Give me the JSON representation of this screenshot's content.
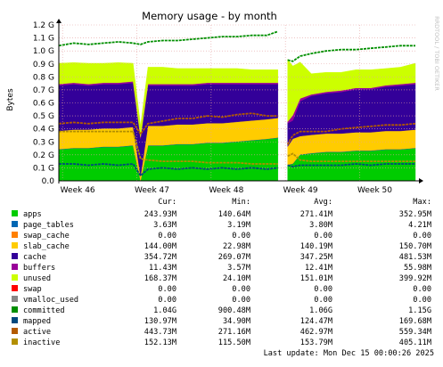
{
  "chart_data": {
    "type": "area",
    "title": "Memory usage - by month",
    "ylabel": "Bytes",
    "side_label": "RRDTOOL / TOBI OETIKER",
    "y_ticks": [
      {
        "label": "0.0",
        "value": 0.0
      },
      {
        "label": "0.1 G",
        "value": 0.1
      },
      {
        "label": "0.2 G",
        "value": 0.2
      },
      {
        "label": "0.3 G",
        "value": 0.3
      },
      {
        "label": "0.4 G",
        "value": 0.4
      },
      {
        "label": "0.5 G",
        "value": 0.5
      },
      {
        "label": "0.6 G",
        "value": 0.6
      },
      {
        "label": "0.7 G",
        "value": 0.7
      },
      {
        "label": "0.8 G",
        "value": 0.8
      },
      {
        "label": "0.9 G",
        "value": 0.9
      },
      {
        "label": "1.0 G",
        "value": 1.0
      },
      {
        "label": "1.1 G",
        "value": 1.1
      },
      {
        "label": "1.2 G",
        "value": 1.2
      }
    ],
    "ylim": [
      0,
      1.2
    ],
    "x_ticks": [
      {
        "label": "Week 46",
        "value": 0.5
      },
      {
        "label": "Week 47",
        "value": 10.5
      },
      {
        "label": "Week 48",
        "value": 20.5
      },
      {
        "label": "Week 49",
        "value": 30.5
      },
      {
        "label": "Week 50",
        "value": 40.5
      }
    ],
    "xlim": [
      0,
      48
    ],
    "gap": [
      29.8,
      30.6
    ],
    "x": [
      0,
      2,
      4,
      6,
      8,
      10,
      11,
      12,
      14,
      16,
      18,
      20,
      22,
      24,
      26,
      28,
      29.5,
      30.8,
      31.5,
      32.5,
      34,
      36,
      38,
      40,
      42,
      44,
      46,
      48
    ],
    "series": [
      {
        "name": "apps",
        "values": [
          0.24,
          0.25,
          0.25,
          0.26,
          0.26,
          0.27,
          0.0,
          0.27,
          0.27,
          0.28,
          0.28,
          0.29,
          0.29,
          0.3,
          0.31,
          0.32,
          0.33,
          0.12,
          0.13,
          0.2,
          0.21,
          0.22,
          0.22,
          0.23,
          0.23,
          0.24,
          0.24,
          0.25
        ]
      },
      {
        "name": "page_tables",
        "values": [
          0.004,
          0.004,
          0.004,
          0.004,
          0.004,
          0.004,
          0.004,
          0.004,
          0.004,
          0.004,
          0.004,
          0.004,
          0.004,
          0.004,
          0.004,
          0.004,
          0.004,
          0.004,
          0.004,
          0.004,
          0.004,
          0.004,
          0.004,
          0.004,
          0.004,
          0.004,
          0.004,
          0.004
        ]
      },
      {
        "name": "swap_cache",
        "values": [
          0,
          0,
          0,
          0,
          0,
          0,
          0,
          0,
          0,
          0,
          0,
          0,
          0,
          0,
          0,
          0,
          0,
          0,
          0,
          0,
          0,
          0,
          0,
          0,
          0,
          0,
          0,
          0
        ]
      },
      {
        "name": "slab_cache",
        "values": [
          0.14,
          0.14,
          0.14,
          0.14,
          0.14,
          0.14,
          0.03,
          0.15,
          0.15,
          0.15,
          0.15,
          0.15,
          0.15,
          0.15,
          0.15,
          0.15,
          0.15,
          0.14,
          0.19,
          0.14,
          0.14,
          0.14,
          0.14,
          0.14,
          0.14,
          0.14,
          0.14,
          0.14
        ]
      },
      {
        "name": "cache",
        "values": [
          0.35,
          0.35,
          0.34,
          0.34,
          0.34,
          0.34,
          0.29,
          0.31,
          0.31,
          0.3,
          0.3,
          0.3,
          0.3,
          0.29,
          0.28,
          0.27,
          0.26,
          0.18,
          0.14,
          0.27,
          0.3,
          0.31,
          0.32,
          0.33,
          0.33,
          0.34,
          0.35,
          0.35
        ]
      },
      {
        "name": "buffers",
        "values": [
          0.011,
          0.011,
          0.011,
          0.011,
          0.011,
          0.011,
          0.011,
          0.011,
          0.011,
          0.011,
          0.011,
          0.011,
          0.011,
          0.011,
          0.011,
          0.011,
          0.011,
          0.011,
          0.04,
          0.02,
          0.011,
          0.011,
          0.011,
          0.011,
          0.011,
          0.011,
          0.011,
          0.011
        ]
      },
      {
        "name": "unused",
        "values": [
          0.16,
          0.155,
          0.16,
          0.15,
          0.155,
          0.14,
          0.09,
          0.13,
          0.13,
          0.12,
          0.12,
          0.11,
          0.11,
          0.11,
          0.1,
          0.1,
          0.1,
          0.48,
          0.38,
          0.28,
          0.16,
          0.15,
          0.14,
          0.14,
          0.14,
          0.13,
          0.13,
          0.15
        ]
      }
    ],
    "lines": [
      {
        "name": "committed",
        "values": [
          1.04,
          1.06,
          1.05,
          1.06,
          1.07,
          1.06,
          1.05,
          1.07,
          1.08,
          1.08,
          1.09,
          1.1,
          1.11,
          1.11,
          1.12,
          1.12,
          1.15,
          0.93,
          0.92,
          0.96,
          0.98,
          1.0,
          1.01,
          1.01,
          1.02,
          1.03,
          1.04,
          1.04
        ]
      },
      {
        "name": "mapped",
        "values": [
          0.13,
          0.13,
          0.12,
          0.13,
          0.12,
          0.13,
          0.04,
          0.09,
          0.1,
          0.09,
          0.1,
          0.09,
          0.1,
          0.09,
          0.1,
          0.09,
          0.1,
          0.12,
          0.11,
          0.12,
          0.12,
          0.12,
          0.12,
          0.13,
          0.12,
          0.13,
          0.13,
          0.13
        ]
      },
      {
        "name": "active",
        "values": [
          0.44,
          0.45,
          0.44,
          0.45,
          0.45,
          0.45,
          0.36,
          0.44,
          0.46,
          0.48,
          0.48,
          0.5,
          0.49,
          0.51,
          0.52,
          0.5,
          0.5,
          0.28,
          0.35,
          0.38,
          0.38,
          0.38,
          0.4,
          0.41,
          0.42,
          0.43,
          0.43,
          0.44
        ]
      },
      {
        "name": "inactive",
        "values": [
          0.38,
          0.38,
          0.38,
          0.38,
          0.38,
          0.38,
          0.17,
          0.16,
          0.15,
          0.15,
          0.15,
          0.14,
          0.14,
          0.14,
          0.13,
          0.13,
          0.13,
          0.19,
          0.21,
          0.16,
          0.15,
          0.15,
          0.15,
          0.15,
          0.15,
          0.15,
          0.15,
          0.15
        ]
      }
    ]
  },
  "colors": {
    "apps": "#00cc00",
    "page_tables": "#0066b3",
    "swap_cache": "#ff8000",
    "slab_cache": "#ffcc00",
    "cache": "#330099",
    "buffers": "#990099",
    "unused": "#ccff00",
    "swap": "#ff0000",
    "vmalloc_used": "#888888",
    "committed": "#008f00",
    "mapped": "#00487d",
    "active": "#b35a00",
    "inactive": "#b38f00"
  },
  "legend": {
    "headers": [
      "Cur:",
      "Min:",
      "Avg:",
      "Max:"
    ],
    "rows": [
      {
        "name": "apps",
        "color": "#00cc00",
        "cur": "243.93M",
        "min": "140.64M",
        "avg": "271.41M",
        "max": "352.95M"
      },
      {
        "name": "page_tables",
        "color": "#0066b3",
        "cur": "3.63M",
        "min": "3.19M",
        "avg": "3.80M",
        "max": "4.21M"
      },
      {
        "name": "swap_cache",
        "color": "#ff8000",
        "cur": "0.00",
        "min": "0.00",
        "avg": "0.00",
        "max": "0.00"
      },
      {
        "name": "slab_cache",
        "color": "#ffcc00",
        "cur": "144.00M",
        "min": "22.98M",
        "avg": "140.19M",
        "max": "150.70M"
      },
      {
        "name": "cache",
        "color": "#330099",
        "cur": "354.72M",
        "min": "269.07M",
        "avg": "347.25M",
        "max": "481.53M"
      },
      {
        "name": "buffers",
        "color": "#990099",
        "cur": "11.43M",
        "min": "3.57M",
        "avg": "12.41M",
        "max": "55.98M"
      },
      {
        "name": "unused",
        "color": "#ccff00",
        "cur": "168.37M",
        "min": "24.10M",
        "avg": "151.01M",
        "max": "399.92M"
      },
      {
        "name": "swap",
        "color": "#ff0000",
        "cur": "0.00",
        "min": "0.00",
        "avg": "0.00",
        "max": "0.00"
      },
      {
        "name": "vmalloc_used",
        "color": "#888888",
        "cur": "0.00",
        "min": "0.00",
        "avg": "0.00",
        "max": "0.00"
      },
      {
        "name": "committed",
        "color": "#008f00",
        "cur": "1.04G",
        "min": "900.48M",
        "avg": "1.06G",
        "max": "1.15G"
      },
      {
        "name": "mapped",
        "color": "#00487d",
        "cur": "130.97M",
        "min": "34.90M",
        "avg": "124.47M",
        "max": "169.68M"
      },
      {
        "name": "active",
        "color": "#b35a00",
        "cur": "443.73M",
        "min": "271.16M",
        "avg": "462.97M",
        "max": "559.34M"
      },
      {
        "name": "inactive",
        "color": "#b38f00",
        "cur": "152.13M",
        "min": "115.50M",
        "avg": "153.79M",
        "max": "405.11M"
      }
    ]
  },
  "footer": {
    "last_update": "Last update: Mon Dec 15 00:00:26 2025"
  }
}
